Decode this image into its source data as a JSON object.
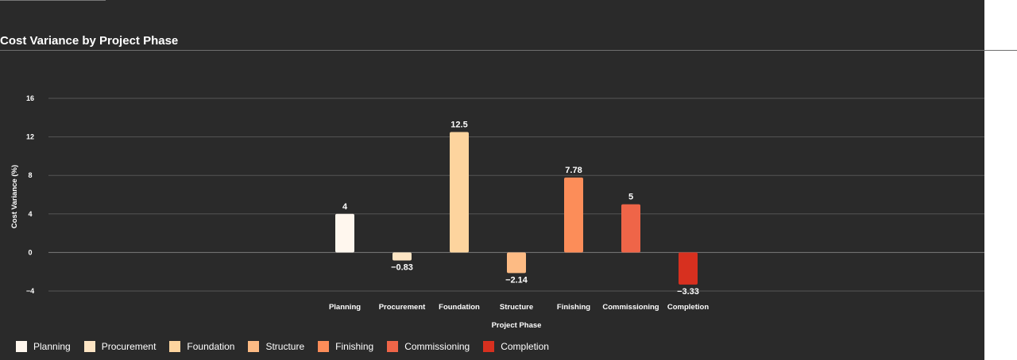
{
  "chart_data": {
    "type": "bar",
    "title": "Cost Variance by Project Phase",
    "xlabel": "Project Phase",
    "ylabel": "Cost Variance (%)",
    "ylim": [
      -4,
      16
    ],
    "yticks": [
      16,
      12,
      8,
      4,
      0,
      -4
    ],
    "ytick_labels": [
      "16",
      "12",
      "8",
      "4",
      "0",
      "−4"
    ],
    "grid": true,
    "legend_position": "bottom-left",
    "categories": [
      "Planning",
      "Procurement",
      "Foundation",
      "Structure",
      "Finishing",
      "Commissioning",
      "Completion"
    ],
    "values": [
      4,
      -0.83,
      12.5,
      -2.14,
      7.78,
      5,
      -3.33
    ],
    "value_labels": [
      "4",
      "−0.83",
      "12.5",
      "−2.14",
      "7.78",
      "5",
      "−3.33"
    ],
    "colors": [
      "#fff7ee",
      "#fde5c4",
      "#fdd49e",
      "#fdbb84",
      "#fc8d59",
      "#ef6548",
      "#d7301f"
    ]
  }
}
